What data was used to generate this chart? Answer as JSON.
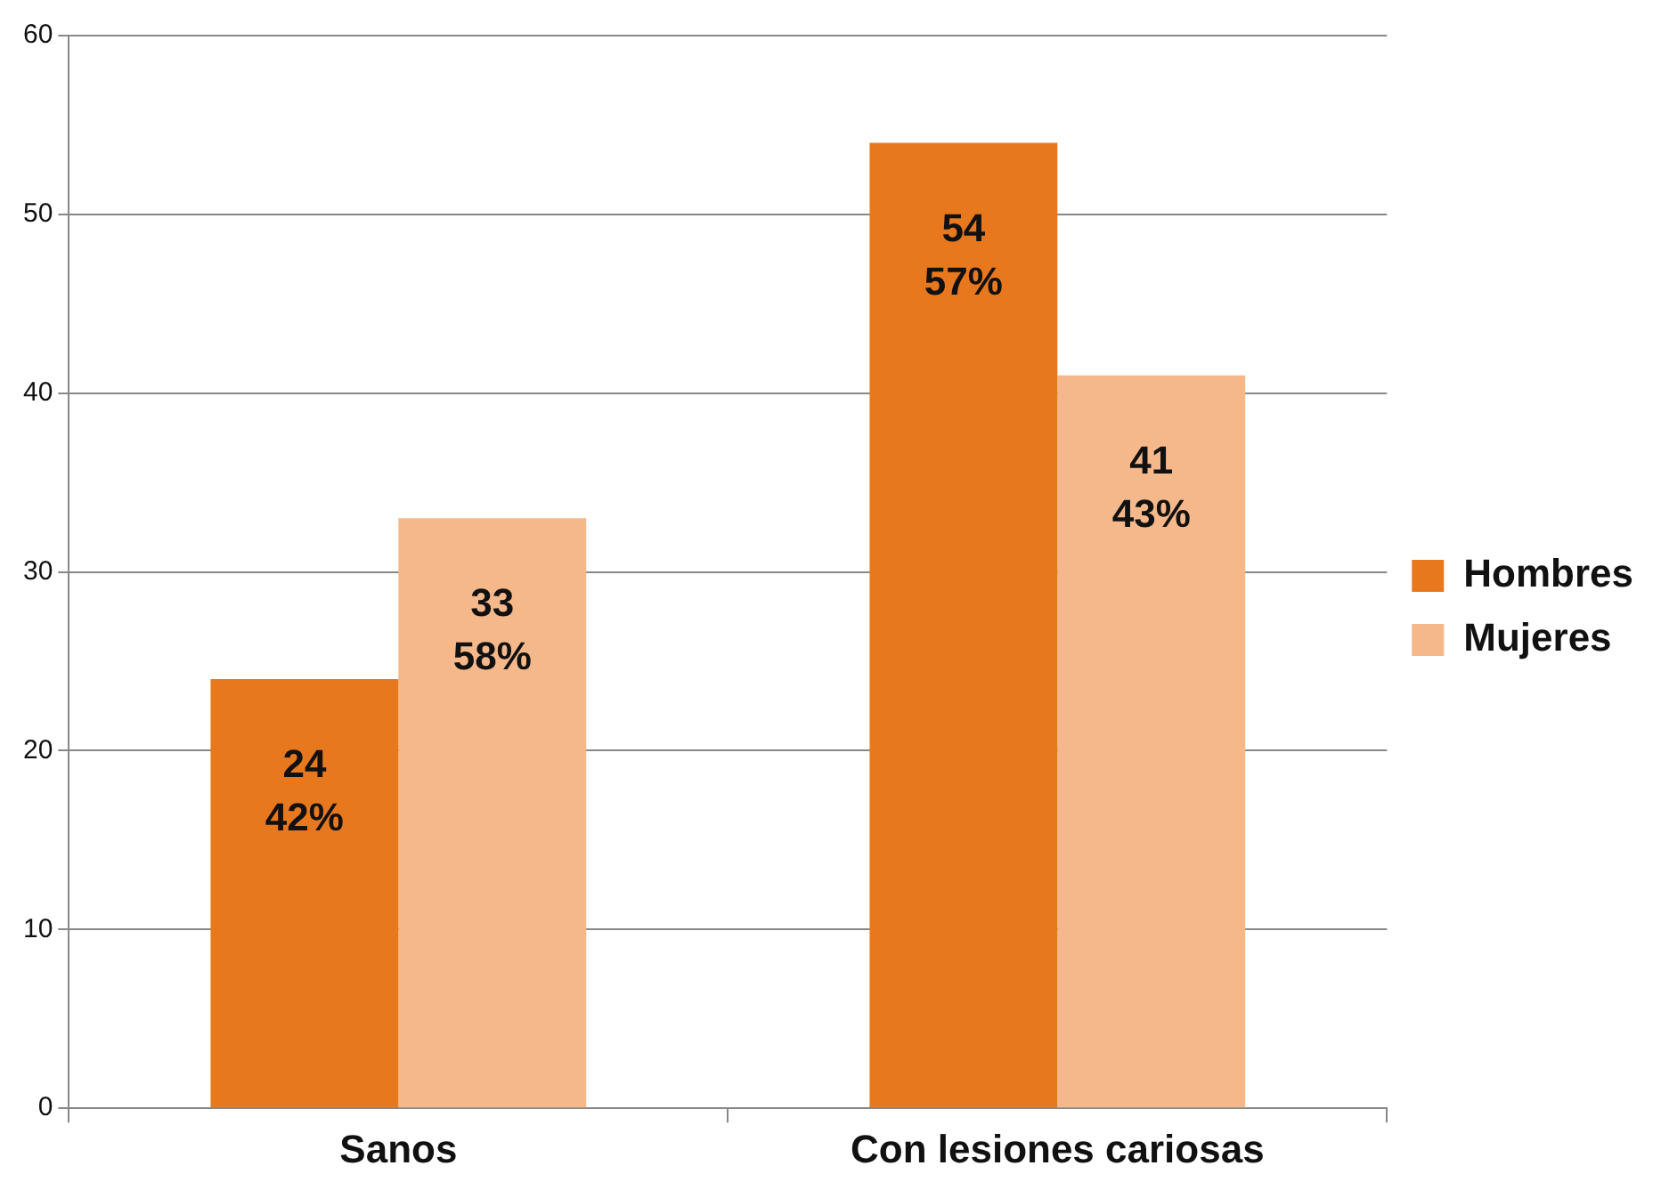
{
  "chart_data": {
    "type": "bar",
    "categories": [
      "Sanos",
      "Con lesiones cariosas"
    ],
    "series": [
      {
        "name": "Hombres",
        "color": "#e8781e",
        "values": [
          24,
          54
        ],
        "value_labels": [
          "24\n42%",
          "54\n57%"
        ]
      },
      {
        "name": "Mujeres",
        "color": "#f5b88a",
        "values": [
          33,
          41
        ],
        "value_labels": [
          "33\n58%",
          "41\n43%"
        ]
      }
    ],
    "ylim": [
      0,
      60
    ],
    "yticks": [
      0,
      10,
      20,
      30,
      40,
      50,
      60
    ],
    "grid": "y",
    "legend": "right"
  }
}
